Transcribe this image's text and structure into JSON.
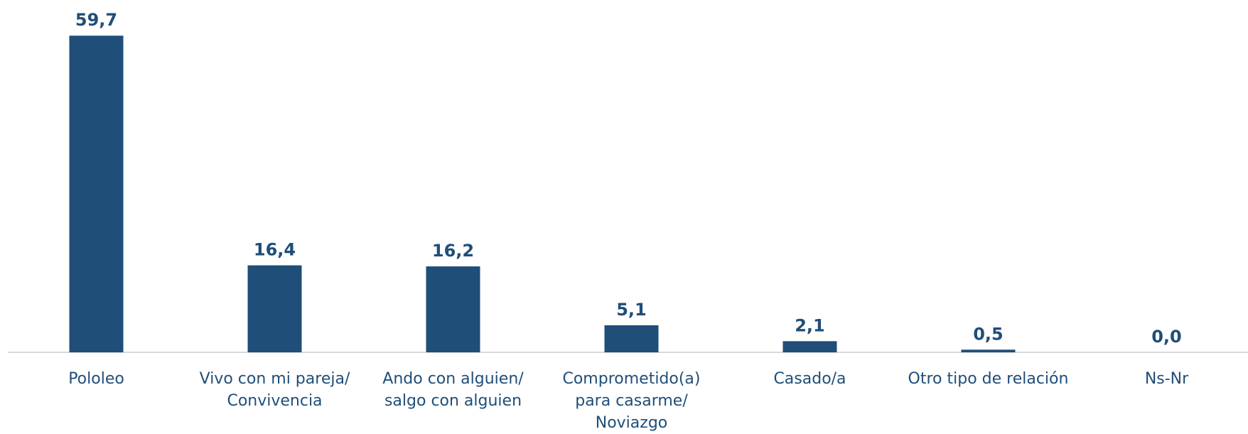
{
  "chart_data": {
    "type": "bar",
    "categories": [
      "Pololeo",
      "Vivo con mi pareja/ Convivencia",
      "Ando con alguien/ salgo con alguien",
      "Comprometido(a) para casarme/ Noviazgo",
      "Casado/a",
      "Otro tipo de relación",
      "Ns-Nr"
    ],
    "values": [
      59.7,
      16.4,
      16.2,
      5.1,
      2.1,
      0.5,
      0.0
    ],
    "value_labels": [
      "59,7",
      "16,4",
      "16,2",
      "5,1",
      "2,1",
      "0,5",
      "0,0"
    ],
    "color": "#1f4e79",
    "ylim": [
      0,
      60
    ]
  }
}
